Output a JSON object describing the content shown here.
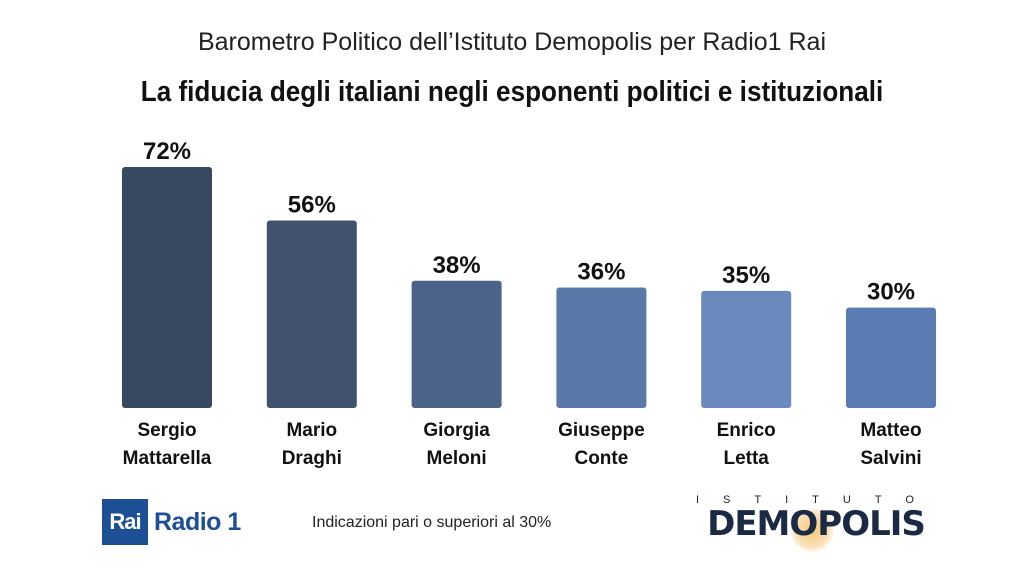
{
  "header": {
    "subtitle": "Barometro Politico dell’Istituto Demopolis per Radio1 Rai",
    "title": "La fiducia degli italiani negli esponenti politici e istituzionali"
  },
  "chart_data": {
    "type": "bar",
    "categories": [
      [
        "Sergio",
        "Mattarella"
      ],
      [
        "Mario",
        "Draghi"
      ],
      [
        "Giorgia",
        "Meloni"
      ],
      [
        "Giuseppe",
        "Conte"
      ],
      [
        "Enrico",
        "Letta"
      ],
      [
        "Matteo",
        "Salvini"
      ]
    ],
    "values": [
      72,
      56,
      38,
      36,
      35,
      30
    ],
    "value_labels": [
      "72%",
      "56%",
      "38%",
      "36%",
      "35%",
      "30%"
    ],
    "colors": [
      "#364961",
      "#40526e",
      "#4b6289",
      "#5a78a8",
      "#6a89bc",
      "#5b7cb3"
    ],
    "ylim": [
      0,
      72
    ],
    "grid": false,
    "legend": "none"
  },
  "footer": {
    "note": "Indicazioni pari o superiori al  30%",
    "rai_box": "Rai",
    "rai_radio": "Radio 1",
    "demopolis_top": "ISTITUTO",
    "demopolis_name": "DEMOPOLIS"
  }
}
